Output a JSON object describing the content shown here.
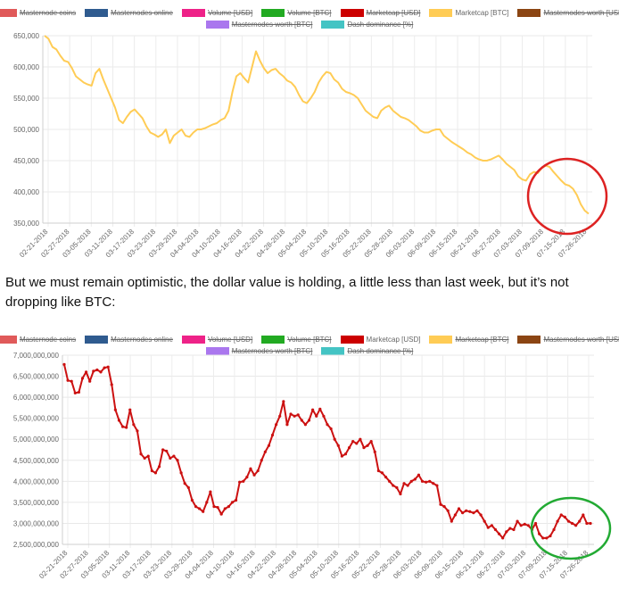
{
  "legend_items": [
    {
      "label": "Masternode coins",
      "color": "#e05a5a",
      "hidden": true
    },
    {
      "label": "Masternodes online",
      "color": "#2f5b8f",
      "hidden": true
    },
    {
      "label": "Volume [USD]",
      "color": "#ee2288",
      "hidden": true
    },
    {
      "label": "Volume [BTC]",
      "color": "#22aa22",
      "hidden": true
    },
    {
      "label": "Marketcap [USD]",
      "color": "#cc0000",
      "hidden": true
    },
    {
      "label": "Marketcap [BTC]",
      "color": "#ffcc55",
      "hidden": false
    },
    {
      "label": "Masternodes worth [USD]",
      "color": "#8b4513",
      "hidden": true
    },
    {
      "label": "Masternodes worth [BTC]",
      "color": "#aa77ee",
      "hidden": true
    },
    {
      "label": "Dash dominance [%]",
      "color": "#44c4c4",
      "hidden": true
    }
  ],
  "legend_items_2": [
    {
      "label": "Masternode coins",
      "color": "#e05a5a",
      "hidden": true
    },
    {
      "label": "Masternodes online",
      "color": "#2f5b8f",
      "hidden": true
    },
    {
      "label": "Volume [USD]",
      "color": "#ee2288",
      "hidden": true
    },
    {
      "label": "Volume [BTC]",
      "color": "#22aa22",
      "hidden": true
    },
    {
      "label": "Marketcap [USD]",
      "color": "#cc0000",
      "hidden": false
    },
    {
      "label": "Marketcap [BTC]",
      "color": "#ffcc55",
      "hidden": true
    },
    {
      "label": "Masternodes worth [USD]",
      "color": "#8b4513",
      "hidden": true
    },
    {
      "label": "Masternodes worth [BTC]",
      "color": "#aa77ee",
      "hidden": true
    },
    {
      "label": "Dash dominance [%]",
      "color": "#44c4c4",
      "hidden": true
    }
  ],
  "caption": "But we must remain optimistic, the dollar value is holding, a little less than last week, but it’s not dropping like BTC:",
  "chart_data": [
    {
      "type": "line",
      "series_name": "Marketcap [BTC]",
      "color": "#ffcc55",
      "annotation_color": "#dd2222",
      "x_labels": [
        "02-21-2018",
        "02-27-2018",
        "03-05-2018",
        "03-11-2018",
        "03-17-2018",
        "03-23-2018",
        "03-29-2018",
        "04-04-2018",
        "04-10-2018",
        "04-16-2018",
        "04-22-2018",
        "04-28-2018",
        "05-04-2018",
        "05-10-2018",
        "05-16-2018",
        "05-22-2018",
        "05-28-2018",
        "06-03-2018",
        "06-09-2018",
        "06-15-2018",
        "06-21-2018",
        "06-27-2018",
        "07-03-2018",
        "07-09-2018",
        "07-15-2018",
        "07-26-2018"
      ],
      "y_ticks": [
        "650,000",
        "600,000",
        "550,000",
        "500,000",
        "450,000",
        "400,000",
        "350,000"
      ],
      "ylim": [
        350000,
        650000
      ],
      "values": [
        650000,
        645000,
        632000,
        628000,
        618000,
        610000,
        608000,
        598000,
        585000,
        580000,
        575000,
        572000,
        570000,
        590000,
        597000,
        580000,
        565000,
        550000,
        535000,
        515000,
        510000,
        520000,
        528000,
        532000,
        525000,
        518000,
        505000,
        495000,
        492000,
        488000,
        492000,
        500000,
        478000,
        490000,
        495000,
        500000,
        490000,
        488000,
        495000,
        500000,
        500000,
        502000,
        505000,
        508000,
        510000,
        515000,
        518000,
        530000,
        560000,
        585000,
        590000,
        582000,
        575000,
        600000,
        625000,
        610000,
        598000,
        590000,
        595000,
        597000,
        590000,
        585000,
        578000,
        575000,
        568000,
        555000,
        545000,
        542000,
        550000,
        560000,
        575000,
        585000,
        592000,
        590000,
        580000,
        575000,
        565000,
        560000,
        558000,
        555000,
        550000,
        540000,
        530000,
        525000,
        520000,
        518000,
        530000,
        535000,
        538000,
        530000,
        525000,
        520000,
        518000,
        515000,
        510000,
        505000,
        498000,
        495000,
        495000,
        498000,
        500000,
        500000,
        490000,
        485000,
        480000,
        476000,
        472000,
        468000,
        463000,
        460000,
        455000,
        452000,
        450000,
        450000,
        452000,
        455000,
        458000,
        452000,
        445000,
        440000,
        435000,
        425000,
        420000,
        418000,
        428000,
        432000,
        430000,
        438000,
        442000,
        440000,
        432000,
        425000,
        418000,
        412000,
        410000,
        405000,
        395000,
        380000,
        370000,
        365000
      ]
    },
    {
      "type": "line",
      "series_name": "Marketcap [USD]",
      "color": "#cc1111",
      "annotation_color": "#22aa33",
      "x_labels": [
        "02-21-2018",
        "02-27-2018",
        "03-05-2018",
        "03-11-2018",
        "03-17-2018",
        "03-23-2018",
        "03-29-2018",
        "04-04-2018",
        "04-10-2018",
        "04-16-2018",
        "04-22-2018",
        "04-28-2018",
        "05-04-2018",
        "05-10-2018",
        "05-16-2018",
        "05-22-2018",
        "05-28-2018",
        "06-03-2018",
        "06-09-2018",
        "06-15-2018",
        "06-21-2018",
        "06-27-2018",
        "07-03-2018",
        "07-09-2018",
        "07-15-2018",
        "07-26-2018"
      ],
      "y_ticks": [
        "7,000,000,000",
        "6,500,000,000",
        "6,000,000,000",
        "5,500,000,000",
        "5,000,000,000",
        "4,500,000,000",
        "4,000,000,000",
        "3,500,000,000",
        "3,000,000,000",
        "2,500,000,000"
      ],
      "ylim": [
        2500000000,
        7000000000
      ],
      "values": [
        6780000000,
        6400000000,
        6380000000,
        6100000000,
        6120000000,
        6450000000,
        6600000000,
        6380000000,
        6620000000,
        6650000000,
        6600000000,
        6700000000,
        6720000000,
        6300000000,
        5700000000,
        5450000000,
        5300000000,
        5280000000,
        5700000000,
        5350000000,
        5200000000,
        4650000000,
        4550000000,
        4600000000,
        4250000000,
        4200000000,
        4350000000,
        4750000000,
        4720000000,
        4550000000,
        4600000000,
        4500000000,
        4200000000,
        3950000000,
        3850000000,
        3550000000,
        3400000000,
        3350000000,
        3280000000,
        3500000000,
        3750000000,
        3400000000,
        3380000000,
        3220000000,
        3350000000,
        3400000000,
        3500000000,
        3550000000,
        3980000000,
        4000000000,
        4100000000,
        4300000000,
        4150000000,
        4250000000,
        4500000000,
        4700000000,
        4850000000,
        5100000000,
        5350000000,
        5550000000,
        5900000000,
        5350000000,
        5600000000,
        5550000000,
        5580000000,
        5450000000,
        5350000000,
        5450000000,
        5700000000,
        5550000000,
        5720000000,
        5550000000,
        5350000000,
        5250000000,
        5000000000,
        4850000000,
        4600000000,
        4650000000,
        4800000000,
        4950000000,
        4900000000,
        5000000000,
        4800000000,
        4850000000,
        4950000000,
        4700000000,
        4250000000,
        4200000000,
        4100000000,
        4000000000,
        3900000000,
        3850000000,
        3700000000,
        3950000000,
        3900000000,
        4000000000,
        4050000000,
        4150000000,
        4000000000,
        3980000000,
        4000000000,
        3950000000,
        3900000000,
        3450000000,
        3400000000,
        3300000000,
        3050000000,
        3200000000,
        3350000000,
        3250000000,
        3300000000,
        3280000000,
        3250000000,
        3300000000,
        3200000000,
        3050000000,
        2900000000,
        2950000000,
        2850000000,
        2750000000,
        2650000000,
        2800000000,
        2880000000,
        2850000000,
        3050000000,
        2950000000,
        2980000000,
        2950000000,
        2850000000,
        3000000000,
        2750000000,
        2650000000,
        2650000000,
        2700000000,
        2850000000,
        3050000000,
        3200000000,
        3150000000,
        3050000000,
        3000000000,
        2950000000,
        3050000000,
        3200000000,
        3000000000,
        3000000000
      ]
    }
  ]
}
